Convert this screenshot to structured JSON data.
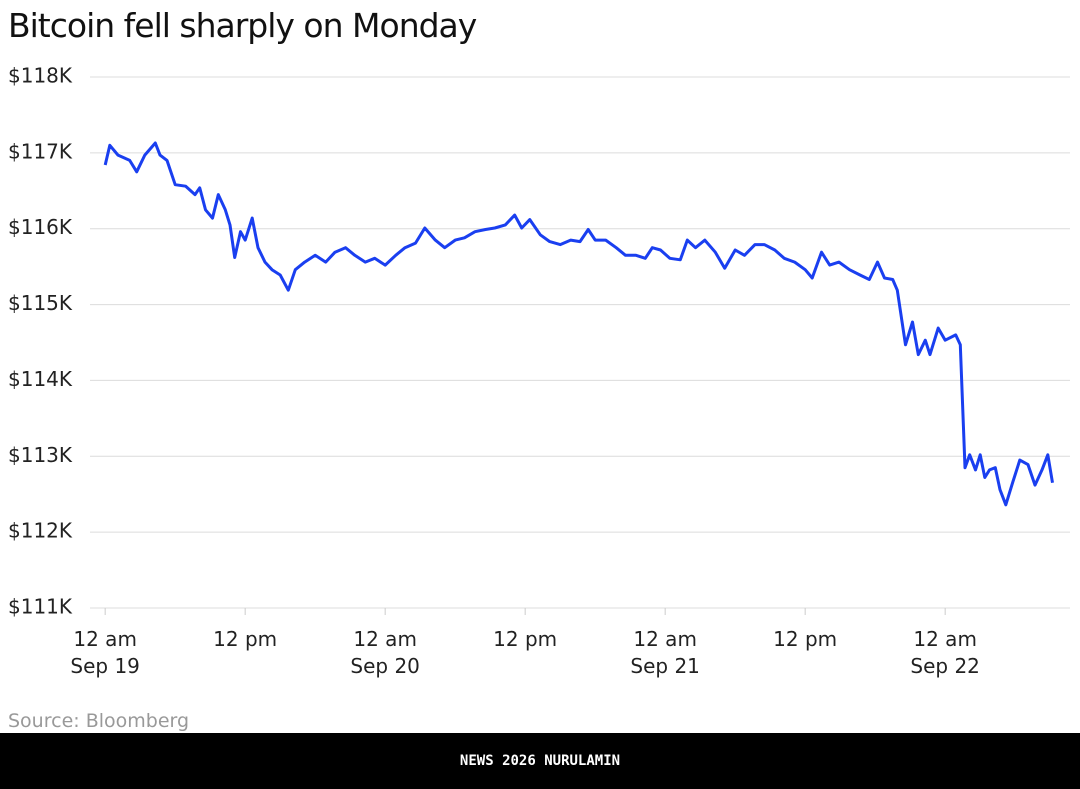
{
  "chart_data": {
    "type": "line",
    "title": "Bitcoin fell sharply on Monday",
    "source": "Source: Bloomberg",
    "footer": "NEWS 2026 NURULAMIN",
    "grid": true,
    "series": [
      {
        "name": "Bitcoin",
        "color": "#1a3ff0",
        "x": [
          0,
          0.4,
          1.1,
          1.7,
          2.1,
          2.7,
          3.4,
          4.3,
          4.7,
          5.3,
          6.0,
          6.9,
          7.7,
          8.1,
          8.6,
          9.2,
          9.7,
          10.3,
          10.7,
          11.1,
          11.6,
          12.0,
          12.6,
          13.1,
          13.7,
          14.3,
          15.0,
          15.7,
          16.3,
          17.1,
          18.0,
          18.9,
          19.7,
          20.6,
          21.4,
          22.3,
          23.1,
          24.0,
          24.9,
          25.7,
          26.6,
          27.4,
          28.3,
          29.1,
          30.0,
          30.8,
          31.7,
          32.6,
          33.4,
          34.3,
          35.1,
          35.7,
          36.4,
          37.3,
          38.1,
          39.0,
          39.9,
          40.7,
          41.4,
          42.0,
          42.9,
          43.8,
          44.6,
          45.5,
          46.3,
          46.9,
          47.6,
          48.4,
          49.3,
          49.9,
          50.6,
          51.4,
          52.3,
          53.1,
          54.0,
          54.8,
          55.7,
          56.5,
          57.4,
          58.2,
          59.1,
          60.0,
          60.6,
          61.4,
          62.1,
          62.9,
          63.8,
          64.7,
          65.5,
          66.2,
          66.8,
          67.5,
          67.9,
          68.6,
          69.2,
          69.7,
          70.3,
          70.7,
          71.4,
          72.0,
          72.9,
          73.3,
          73.7,
          74.1,
          74.6,
          75.0,
          75.4,
          75.8,
          76.3,
          76.7,
          77.2,
          77.8,
          78.4,
          79.1,
          79.7,
          80.3,
          80.8,
          81.2
        ],
        "values": [
          116840,
          117100,
          116970,
          116930,
          116900,
          116750,
          116970,
          117130,
          116970,
          116900,
          116580,
          116560,
          116450,
          116540,
          116250,
          116140,
          116450,
          116250,
          116050,
          115620,
          115960,
          115850,
          116140,
          115750,
          115560,
          115460,
          115390,
          115190,
          115460,
          115560,
          115650,
          115560,
          115690,
          115750,
          115650,
          115560,
          115610,
          115520,
          115650,
          115750,
          115810,
          116010,
          115850,
          115750,
          115850,
          115880,
          115960,
          115990,
          116010,
          116050,
          116180,
          116010,
          116120,
          115920,
          115830,
          115790,
          115850,
          115830,
          115990,
          115850,
          115850,
          115750,
          115650,
          115650,
          115610,
          115750,
          115720,
          115610,
          115590,
          115850,
          115750,
          115850,
          115690,
          115480,
          115720,
          115650,
          115790,
          115790,
          115720,
          115610,
          115560,
          115460,
          115350,
          115690,
          115520,
          115560,
          115460,
          115390,
          115330,
          115560,
          115350,
          115330,
          115190,
          114470,
          114770,
          114340,
          114530,
          114340,
          114690,
          114530,
          114600,
          114470,
          112850,
          113020,
          112820,
          113020,
          112720,
          112820,
          112850,
          112560,
          112360,
          112660,
          112950,
          112890,
          112620,
          112820,
          113020,
          112650
        ]
      }
    ],
    "xlim": [
      -1.3,
      82.7
    ],
    "xticks": [
      {
        "value": 0,
        "label": "12 am\nSep 19"
      },
      {
        "value": 12,
        "label": "12 pm"
      },
      {
        "value": 24,
        "label": "12 am\nSep 20"
      },
      {
        "value": 36,
        "label": "12 pm"
      },
      {
        "value": 48,
        "label": "12 am\nSep 21"
      },
      {
        "value": 60,
        "label": "12 pm"
      },
      {
        "value": 72,
        "label": "12 am\nSep 22"
      }
    ],
    "ylim": [
      111000,
      118000
    ],
    "yticks": [
      {
        "value": 111000,
        "label": "$111K"
      },
      {
        "value": 112000,
        "label": "$112K"
      },
      {
        "value": 113000,
        "label": "$113K"
      },
      {
        "value": 114000,
        "label": "$114K"
      },
      {
        "value": 115000,
        "label": "$115K"
      },
      {
        "value": 116000,
        "label": "$116K"
      },
      {
        "value": 117000,
        "label": "$117K"
      },
      {
        "value": 118000,
        "label": "$118K"
      }
    ]
  }
}
